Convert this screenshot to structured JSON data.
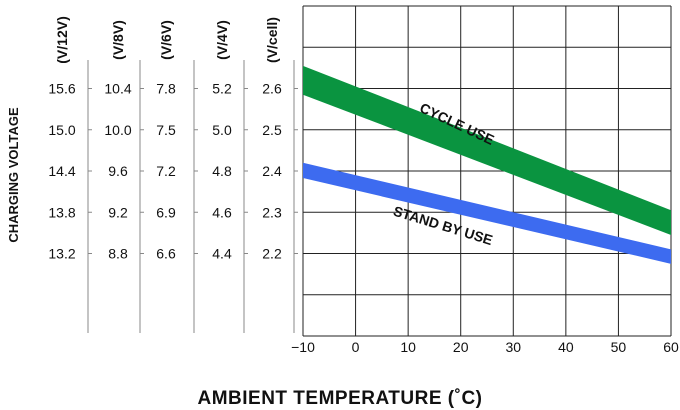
{
  "chart_data": {
    "type": "area",
    "xlabel": "AMBIENT TEMPERATURE (˚C)",
    "ylabel": "CHARGING VOLTAGE",
    "x_ticks": [
      "−10",
      "0",
      "10",
      "20",
      "30",
      "40",
      "50",
      "60"
    ],
    "xlim": [
      -10,
      60
    ],
    "ylim_volts_per_cell": [
      2.0,
      2.8
    ],
    "grid": true,
    "y_scales": [
      {
        "header": "(V/12V)",
        "ticks": [
          "15.6",
          "15.0",
          "14.4",
          "13.8",
          "13.2"
        ]
      },
      {
        "header": "(V/8V)",
        "ticks": [
          "10.4",
          "10.0",
          "9.6",
          "9.2",
          "8.8"
        ]
      },
      {
        "header": "(V/6V)",
        "ticks": [
          "7.8",
          "7.5",
          "7.2",
          "6.9",
          "6.6"
        ]
      },
      {
        "header": "(V/4V)",
        "ticks": [
          "5.2",
          "5.0",
          "4.8",
          "4.6",
          "4.4"
        ]
      },
      {
        "header": "(V/cell)",
        "ticks": [
          "2.6",
          "2.5",
          "2.4",
          "2.3",
          "2.2"
        ]
      }
    ],
    "y_tick_values_per_cell": [
      2.6,
      2.5,
      2.4,
      2.3,
      2.2
    ],
    "series": [
      {
        "name": "CYCLE USE",
        "color": "#0a9440",
        "x": [
          -10,
          60
        ],
        "upper": [
          2.655,
          2.305
        ],
        "lower": [
          2.585,
          2.245
        ]
      },
      {
        "name": "STAND BY USE",
        "color": "#3d6bf0",
        "x": [
          -10,
          60
        ],
        "upper": [
          2.42,
          2.21
        ],
        "lower": [
          2.383,
          2.175
        ]
      }
    ]
  }
}
